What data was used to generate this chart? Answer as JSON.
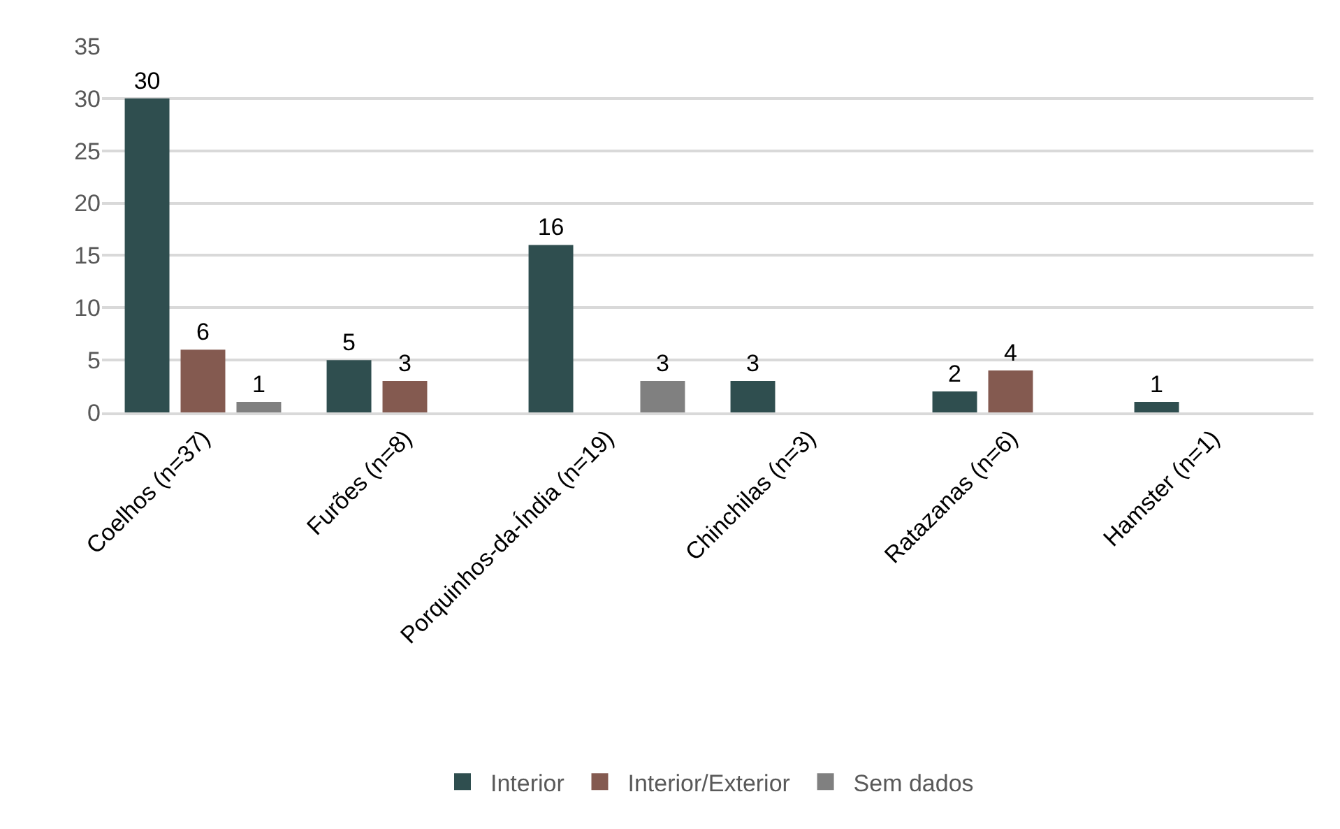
{
  "chart_data": {
    "type": "bar",
    "categories": [
      "Coelhos (n=37)",
      "Furões (n=8)",
      "Porquinhos-da-Índia (n=19)",
      "Chinchilas (n=3)",
      "Ratazanas (n=6)",
      "Hamster (n=1)"
    ],
    "series": [
      {
        "name": "Interior",
        "color": "#2f4e4f",
        "values": [
          30,
          5,
          16,
          3,
          2,
          1
        ]
      },
      {
        "name": "Interior/Exterior",
        "color": "#845a50",
        "values": [
          6,
          3,
          null,
          null,
          4,
          null
        ]
      },
      {
        "name": "Sem dados",
        "color": "#808080",
        "values": [
          1,
          null,
          3,
          null,
          null,
          null
        ]
      }
    ],
    "ylim": [
      0,
      35
    ],
    "yticks": [
      0,
      5,
      10,
      15,
      20,
      25,
      30,
      35
    ],
    "grid": "y",
    "legend": "bottom",
    "data_labels": true
  }
}
